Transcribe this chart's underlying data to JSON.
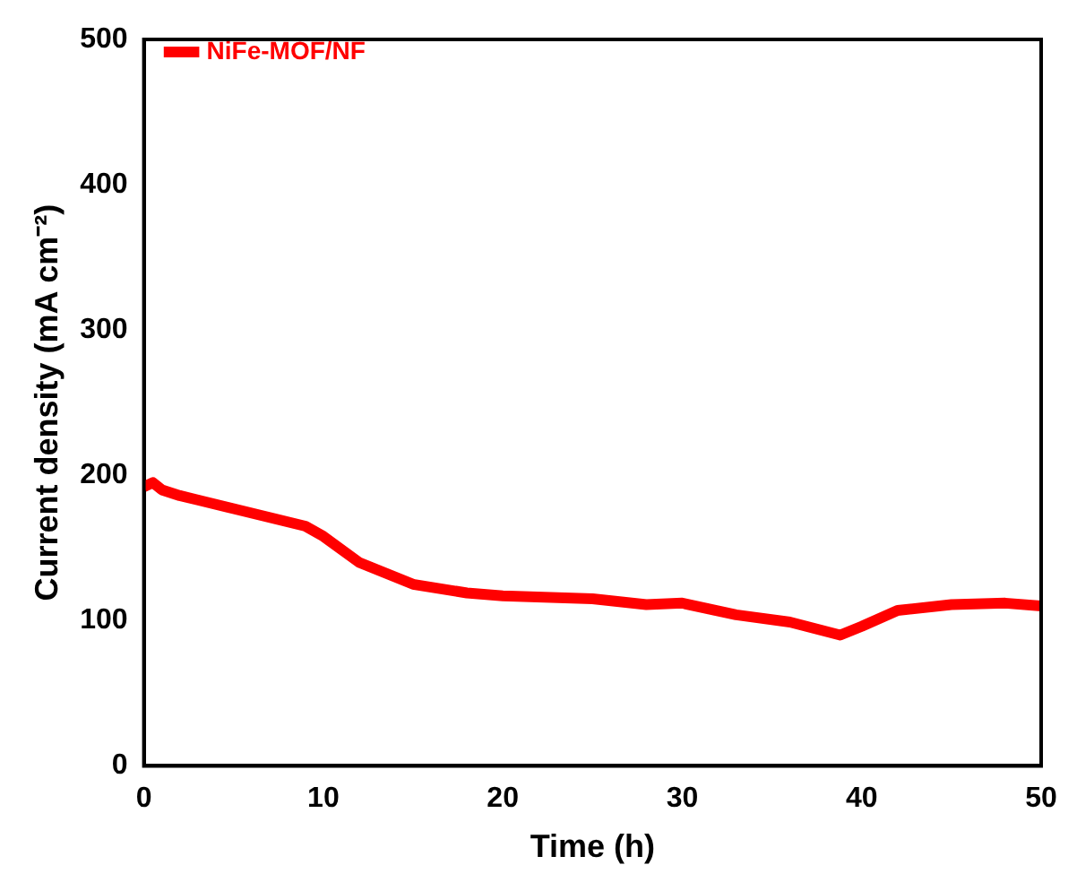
{
  "chart_data": {
    "type": "line",
    "xlabel": "Time (h)",
    "ylabel": "Current density (mA cm⁻²)",
    "x": [
      0,
      0.5,
      1,
      2,
      3,
      5,
      7,
      9,
      10,
      12,
      15,
      18,
      20,
      25,
      28,
      30,
      33,
      36,
      38.8,
      40,
      42,
      45,
      48,
      50
    ],
    "series": [
      {
        "name": "NiFe-MOF/NF",
        "color": "#ff0000",
        "values": [
          192,
          195,
          190,
          186,
          183,
          177,
          171,
          165,
          158,
          140,
          125,
          119,
          117,
          115,
          111,
          112,
          104,
          99,
          90,
          96,
          107,
          111,
          112,
          110
        ]
      }
    ],
    "xlim": [
      0,
      50
    ],
    "ylim": [
      0,
      500
    ],
    "xticks": [
      0,
      10,
      20,
      30,
      40,
      50
    ],
    "yticks": [
      0,
      100,
      200,
      300,
      400,
      500
    ],
    "grid": false,
    "legend": "top left",
    "marker": "none",
    "line_style": "solid"
  }
}
